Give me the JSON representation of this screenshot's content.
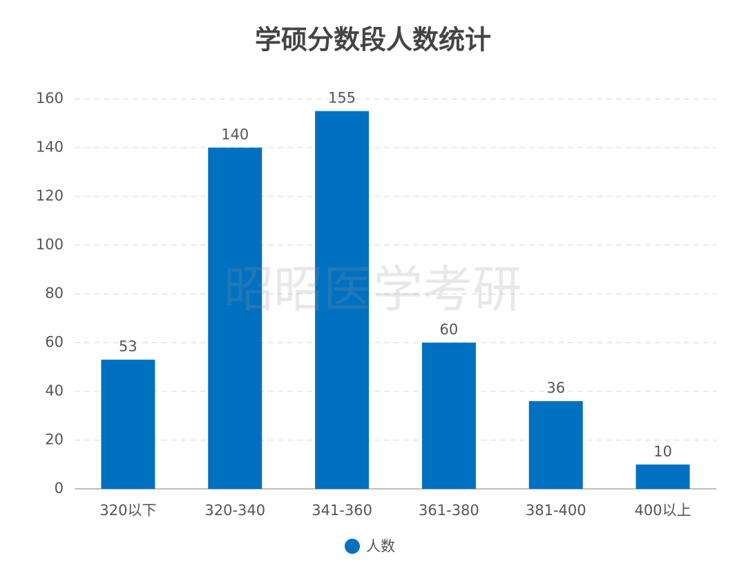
{
  "chart_data": {
    "type": "bar",
    "title": "学硕分数段人数统计",
    "watermark": "昭昭医学考研",
    "categories": [
      "320以下",
      "320-340",
      "341-360",
      "361-380",
      "381-400",
      "400以上"
    ],
    "series": [
      {
        "name": "人数",
        "color": "#0070c0",
        "values": [
          53,
          140,
          155,
          60,
          36,
          10
        ]
      }
    ],
    "ylim": [
      0,
      160
    ],
    "yticks": [
      0,
      20,
      40,
      60,
      80,
      100,
      120,
      140,
      160
    ],
    "grid": true,
    "legend": "bottom"
  }
}
